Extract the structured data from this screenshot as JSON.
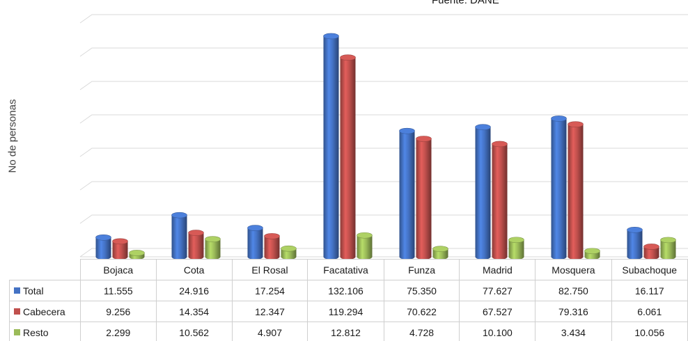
{
  "subtitle": "Fuente: DANE",
  "chart_data": {
    "type": "bar",
    "title": "",
    "subtitle": "Fuente: DANE",
    "xlabel": "",
    "ylabel": "No de personas",
    "ylim": [
      0,
      140000
    ],
    "grid": true,
    "legend": "data table",
    "categories": [
      "Bojaca",
      "Cota",
      "El Rosal",
      "Facatativa",
      "Funza",
      "Madrid",
      "Mosquera",
      "Subachoque"
    ],
    "series": [
      {
        "name": "Total",
        "color": "#4472C4",
        "values": [
          11555,
          24916,
          17254,
          132106,
          75350,
          77627,
          82750,
          16117
        ]
      },
      {
        "name": "Cabecera",
        "color": "#C0504D",
        "values": [
          9256,
          14354,
          12347,
          119294,
          70622,
          67527,
          79316,
          6061
        ]
      },
      {
        "name": "Resto",
        "color": "#9BBB59",
        "values": [
          2299,
          10562,
          4907,
          12812,
          4728,
          10100,
          3434,
          10056
        ]
      }
    ],
    "table": {
      "Total": [
        "11.555",
        "24.916",
        "17.254",
        "132.106",
        "75.350",
        "77.627",
        "82.750",
        "16.117"
      ],
      "Cabecera": [
        "9.256",
        "14.354",
        "12.347",
        "119.294",
        "70.622",
        "67.527",
        "79.316",
        "6.061"
      ],
      "Resto": [
        "2.299",
        "10.562",
        "4.907",
        "12.812",
        "4.728",
        "10.100",
        "3.434",
        "10.056"
      ]
    }
  }
}
